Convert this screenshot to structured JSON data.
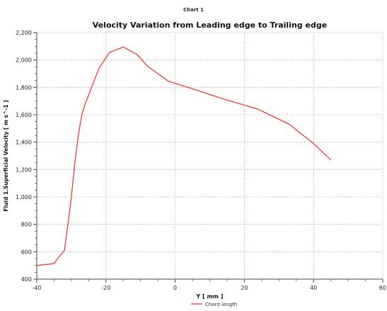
{
  "window_title": "Chart 1",
  "chart_data": {
    "type": "line",
    "title": "Velocity Variation from Leading edge to Trailing edge",
    "xlabel": "Y [ mm ]",
    "ylabel": "Fluid 1.Superficial Velocity [ m s^-1 ]",
    "xlim": [
      -40,
      60
    ],
    "ylim": [
      400,
      2200
    ],
    "xticks": [
      -40,
      -20,
      0,
      20,
      40,
      60
    ],
    "yticks": [
      400,
      600,
      800,
      1000,
      1200,
      1400,
      1600,
      1800,
      2000,
      2200
    ],
    "ytick_labels": [
      "400",
      "600",
      "800",
      "1,000",
      "1,200",
      "1,400",
      "1,600",
      "1,800",
      "2,000",
      "2,200"
    ],
    "grid": true,
    "legend_position": "bottom-center",
    "colors": {
      "series": "#ee3a3a",
      "grid": "#9a9a9a",
      "axis": "#444444"
    },
    "series": [
      {
        "name": "Chord length",
        "x": [
          -40,
          -36,
          -35,
          -34,
          -32,
          -31,
          -30,
          -29,
          -28,
          -27,
          -26,
          -24,
          -22,
          -19,
          -15,
          -11,
          -8,
          -2,
          5,
          14,
          24,
          33,
          40,
          45
        ],
        "y": [
          500,
          510,
          515,
          550,
          610,
          800,
          1000,
          1250,
          1450,
          1600,
          1680,
          1810,
          1940,
          2055,
          2095,
          2040,
          1955,
          1845,
          1790,
          1715,
          1640,
          1530,
          1390,
          1270
        ]
      }
    ]
  }
}
